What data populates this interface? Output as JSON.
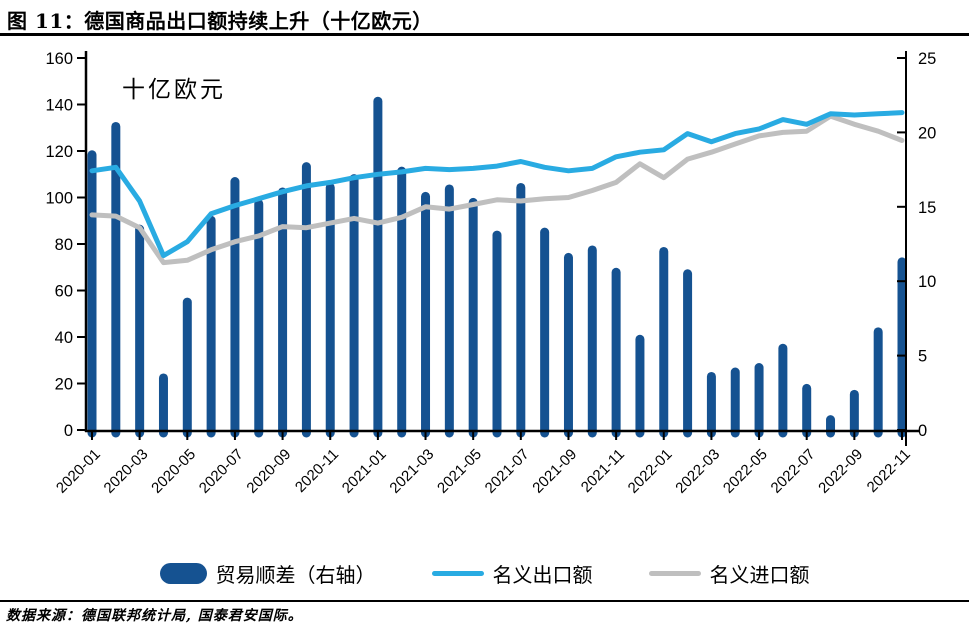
{
  "title": "图 11：德国商品出口额持续上升（十亿欧元）",
  "source": "数据来源：德国联邦统计局, 国泰君安国际。",
  "colors": {
    "bar": "#155291",
    "export_line": "#29ABE2",
    "import_line": "#BFBFBF",
    "axis": "#000000",
    "text": "#000000",
    "background": "#FFFFFF"
  },
  "legend_labels": {
    "trade_surplus": "贸易顺差（右轴）",
    "exports": "名义出口额",
    "imports": "名义进口额"
  },
  "chart_data": {
    "type": "bar",
    "subtype": "combo-bar-line-dual-axis",
    "unit_annotation": "十亿欧元",
    "grid": "off",
    "legend_position": "bottom",
    "left_axis": {
      "min": 0,
      "max": 160,
      "step": 20,
      "tick_labels": [
        "0",
        "20",
        "40",
        "60",
        "80",
        "100",
        "120",
        "140",
        "160"
      ]
    },
    "right_axis": {
      "min": 0,
      "max": 25,
      "step": 5,
      "tick_labels": [
        "0",
        "5",
        "10",
        "15",
        "20",
        "25"
      ]
    },
    "x": [
      "2020-01",
      "2020-02",
      "2020-03",
      "2020-04",
      "2020-05",
      "2020-06",
      "2020-07",
      "2020-08",
      "2020-09",
      "2020-10",
      "2020-11",
      "2020-12",
      "2021-01",
      "2021-02",
      "2021-03",
      "2021-04",
      "2021-05",
      "2021-06",
      "2021-07",
      "2021-08",
      "2021-09",
      "2021-10",
      "2021-11",
      "2021-12",
      "2022-01",
      "2022-02",
      "2022-03",
      "2022-04",
      "2022-05",
      "2022-06",
      "2022-07",
      "2022-08",
      "2022-09",
      "2022-10",
      "2022-11"
    ],
    "x_tick_every": 2,
    "series": [
      {
        "id": "trade-surplus",
        "name": "贸易顺差（右轴）",
        "type": "bar",
        "axis": "right",
        "color": "#155291",
        "values": [
          18.8,
          20.7,
          13.8,
          3.8,
          8.9,
          14.4,
          17.0,
          15.5,
          16.3,
          18.0,
          16.6,
          17.2,
          22.4,
          17.7,
          16.0,
          16.5,
          15.6,
          13.4,
          16.6,
          13.6,
          11.9,
          12.4,
          10.9,
          6.4,
          12.3,
          10.8,
          3.9,
          4.2,
          4.5,
          5.8,
          3.1,
          1.0,
          2.7,
          6.9,
          11.6
        ]
      },
      {
        "id": "exports",
        "name": "名义出口额",
        "type": "line",
        "axis": "left",
        "color": "#29ABE2",
        "values": [
          111.5,
          113,
          98.5,
          75,
          81,
          93,
          96.5,
          99.5,
          102.5,
          105,
          106.5,
          108.5,
          110,
          111,
          112.5,
          112,
          112.5,
          113.5,
          115.5,
          113,
          111.5,
          112.5,
          117.5,
          119.5,
          120.5,
          127.5,
          124,
          127.5,
          129.5,
          133.5,
          131.5,
          136,
          135.5,
          136,
          136.5
        ]
      },
      {
        "id": "imports",
        "name": "名义进口额",
        "type": "line",
        "axis": "left",
        "color": "#BFBFBF",
        "values": [
          92.5,
          92,
          87,
          72,
          73,
          77.5,
          81,
          83.5,
          87.5,
          87,
          89,
          91,
          89,
          91.5,
          96,
          95,
          97,
          99,
          98.5,
          99.5,
          100,
          103,
          106.5,
          114.5,
          108.5,
          116.5,
          119.5,
          123,
          126.5,
          128,
          128.5,
          135,
          131.5,
          128.5,
          124.5
        ]
      }
    ]
  }
}
